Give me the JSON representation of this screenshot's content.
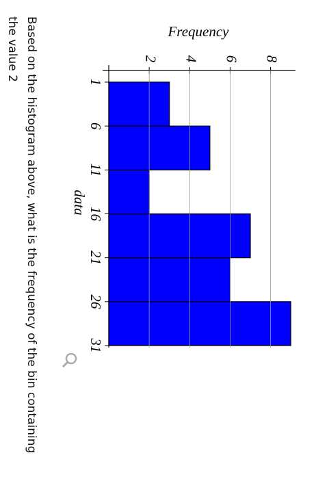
{
  "chart_data": {
    "type": "histogram",
    "ylabel": "Frequency",
    "xlabel": "data",
    "bins": [
      1,
      6,
      11,
      16,
      21,
      26,
      31
    ],
    "values": [
      3,
      5,
      2,
      7,
      6,
      9
    ],
    "color": "#0000ff",
    "xlim": [
      1,
      31
    ],
    "xticks": [
      1,
      6,
      11,
      16,
      21,
      26,
      31
    ],
    "ylim": [
      0,
      9.3
    ],
    "yticks": [
      2,
      4,
      6,
      8
    ],
    "grid": true
  },
  "question": "Based on the histogram above, what is the frequency of the bin containing the value 2"
}
